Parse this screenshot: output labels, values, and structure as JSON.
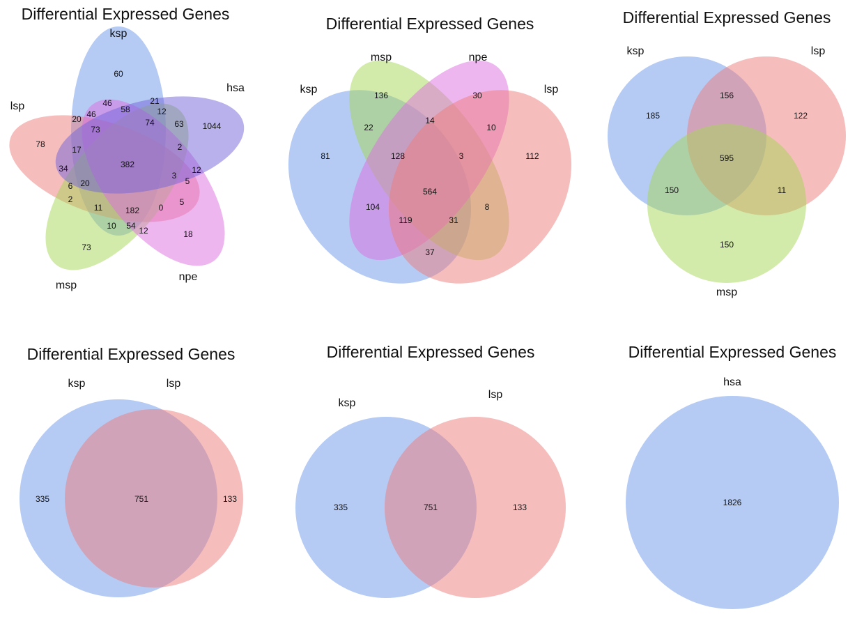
{
  "colors": {
    "ksp": "#6c97ea",
    "lsp": "#ee7b7b",
    "msp": "#a6d655",
    "npe": "#dd6ee0",
    "hsa": "#7163d8",
    "hsa_single": "#6c97ea"
  },
  "panels": [
    {
      "title": "Differential Expressed Genes",
      "sets": [
        "ksp",
        "lsp",
        "msp",
        "npe",
        "hsa"
      ],
      "counts": [
        "60",
        "1044",
        "78",
        "73",
        "18",
        "46",
        "58",
        "21",
        "20",
        "46",
        "73",
        "74",
        "12",
        "63",
        "17",
        "382",
        "2",
        "34",
        "12",
        "3",
        "5",
        "6",
        "20",
        "2",
        "11",
        "182",
        "0",
        "5",
        "10",
        "54",
        "12"
      ]
    },
    {
      "title": "Differential Expressed Genes",
      "sets": [
        "ksp",
        "msp",
        "npe",
        "lsp"
      ],
      "counts": [
        "81",
        "136",
        "30",
        "112",
        "22",
        "14",
        "10",
        "128",
        "3",
        "564",
        "104",
        "8",
        "119",
        "31",
        "37"
      ]
    },
    {
      "title": "Differential Expressed Genes",
      "sets": [
        "ksp",
        "lsp",
        "msp"
      ],
      "counts": [
        "185",
        "156",
        "122",
        "595",
        "150",
        "11",
        "150"
      ]
    },
    {
      "title": "Differential Expressed Genes",
      "sets": [
        "ksp",
        "lsp"
      ],
      "counts": [
        "335",
        "751",
        "133"
      ]
    },
    {
      "title": "Differential Expressed Genes",
      "sets": [
        "ksp",
        "lsp"
      ],
      "counts": [
        "335",
        "751",
        "133"
      ]
    },
    {
      "title": "Differential Expressed Genes",
      "sets": [
        "hsa"
      ],
      "counts": [
        "1826"
      ]
    }
  ]
}
